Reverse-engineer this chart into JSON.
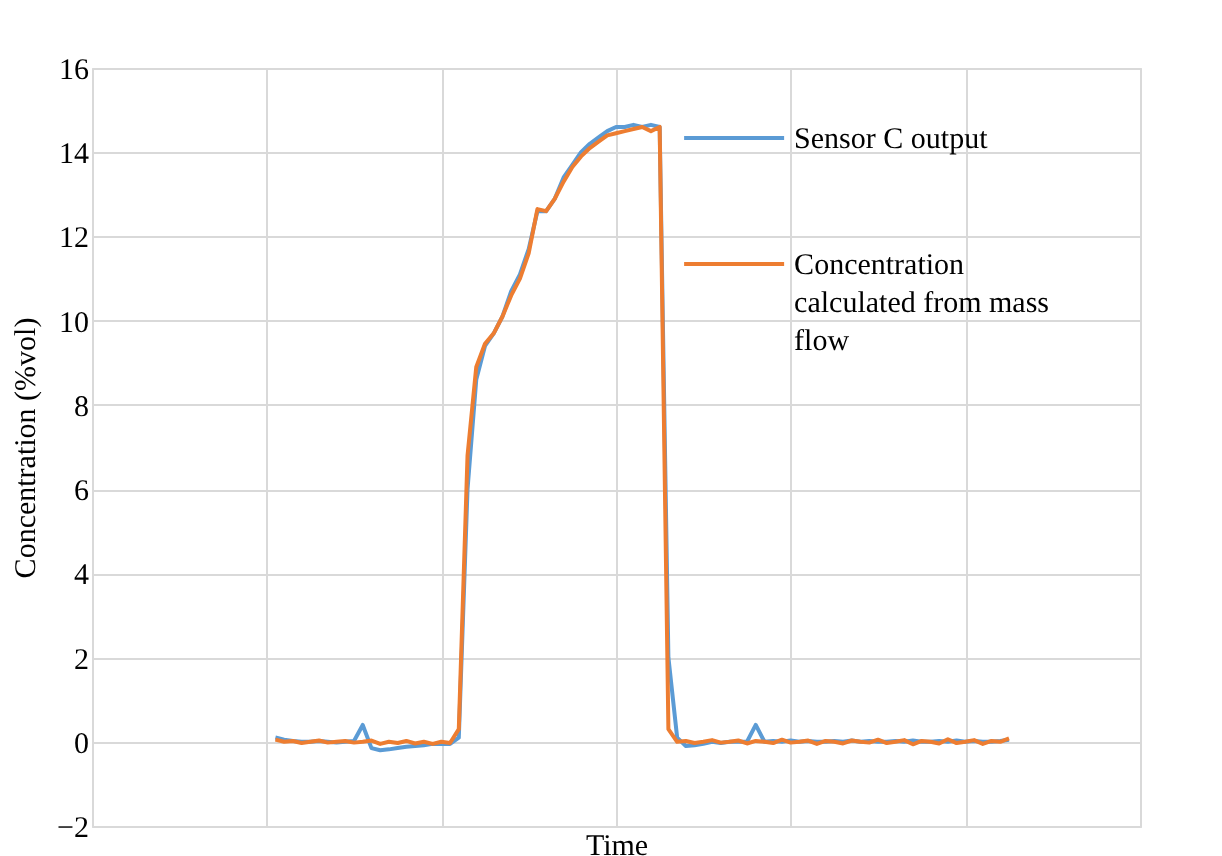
{
  "chart_data": {
    "type": "line",
    "xlabel": "Time",
    "ylabel": "Concentration (%vol)",
    "categories": [
      null,
      null,
      null,
      null,
      null,
      null,
      null,
      null,
      null,
      null,
      null,
      null,
      null,
      null,
      null,
      null,
      null,
      null,
      null,
      null,
      null,
      null,
      null,
      null,
      null,
      null,
      null,
      null,
      null,
      null,
      null,
      null,
      null,
      null,
      null,
      null,
      null,
      null,
      null,
      null,
      null,
      null,
      null,
      null,
      null,
      null,
      null,
      null,
      null,
      null,
      null,
      null,
      null,
      null,
      null,
      null,
      null,
      null,
      null,
      null,
      null,
      null,
      null,
      null,
      null,
      null,
      null,
      null,
      null,
      null,
      null,
      null,
      null,
      null,
      null,
      null,
      null,
      null,
      null,
      null,
      null,
      null,
      null,
      null,
      null,
      null,
      null,
      null,
      null,
      null,
      null,
      null,
      null,
      null,
      null,
      null,
      null,
      null,
      null,
      null,
      null,
      null,
      null,
      null,
      null,
      null,
      null,
      null,
      null,
      null,
      null,
      null,
      null,
      null,
      null,
      null,
      null,
      null,
      null,
      null,
      null
    ],
    "series": [
      {
        "name": "Sensor C output",
        "color": "#5b9bd5",
        "values": [
          null,
          null,
          null,
          null,
          null,
          null,
          null,
          null,
          null,
          null,
          null,
          null,
          null,
          null,
          null,
          null,
          null,
          null,
          null,
          null,
          null,
          0.1,
          0.05,
          0.02,
          0,
          0,
          0.02,
          0,
          -0.02,
          0,
          0.02,
          0.4,
          -0.15,
          -0.2,
          -0.18,
          -0.15,
          -0.12,
          -0.1,
          -0.08,
          -0.05,
          -0.05,
          -0.05,
          0.1,
          6.0,
          8.6,
          9.4,
          9.7,
          10.1,
          10.7,
          11.1,
          11.7,
          12.6,
          12.6,
          12.9,
          13.4,
          13.7,
          14.0,
          14.2,
          14.35,
          14.5,
          14.6,
          14.6,
          14.65,
          14.6,
          14.65,
          14.6,
          2.0,
          0.1,
          -0.1,
          -0.08,
          -0.05,
          0,
          -0.03,
          0,
          0,
          0,
          0.4,
          0,
          0.02,
          0,
          0.03,
          0,
          0.02,
          0,
          0,
          0.02,
          0,
          0.03,
          0,
          0.02,
          0,
          0,
          0.02,
          0,
          0.03,
          0,
          0,
          0.02,
          0,
          0.03,
          0,
          0.02,
          0,
          0,
          0.02,
          0.05,
          null,
          null,
          null,
          null,
          null,
          null,
          null,
          null,
          null,
          null,
          null,
          null,
          null,
          null,
          null
        ]
      },
      {
        "name": "Concentration calculated from mass flow",
        "color": "#ed7d31",
        "values": [
          null,
          null,
          null,
          null,
          null,
          null,
          null,
          null,
          null,
          null,
          null,
          null,
          null,
          null,
          null,
          null,
          null,
          null,
          null,
          null,
          null,
          0.05,
          0,
          0.02,
          -0.03,
          0,
          0.03,
          -0.02,
          0,
          0.02,
          -0.02,
          0,
          0.03,
          -0.05,
          0,
          -0.03,
          0.02,
          -0.04,
          0,
          -0.05,
          0,
          -0.03,
          0.3,
          6.8,
          8.9,
          9.45,
          9.7,
          10.1,
          10.6,
          11.0,
          11.6,
          12.65,
          12.6,
          12.9,
          13.3,
          13.65,
          13.9,
          14.1,
          14.25,
          14.4,
          14.45,
          14.5,
          14.55,
          14.6,
          14.5,
          14.6,
          0.3,
          0.0,
          0.02,
          -0.03,
          0,
          0.04,
          -0.02,
          0,
          0.03,
          -0.04,
          0.02,
          0,
          -0.03,
          0.05,
          -0.02,
          0,
          0.03,
          -0.05,
          0.02,
          0,
          -0.04,
          0.03,
          0,
          -0.02,
          0.05,
          -0.03,
          0,
          0.04,
          -0.06,
          0.02,
          0,
          -0.04,
          0.06,
          -0.03,
          0,
          0.04,
          -0.05,
          0.02,
          0,
          0.08,
          null,
          null,
          null,
          null,
          null,
          null,
          null,
          null,
          null,
          null,
          null,
          null,
          null,
          null,
          null
        ]
      }
    ],
    "ylim": [
      -2,
      16
    ],
    "yticks": [
      -2,
      0,
      2,
      4,
      6,
      8,
      10,
      12,
      14,
      16
    ],
    "grid": true,
    "legend": "right",
    "tick_labels": "y",
    "line_style": "solid",
    "marker": "none"
  }
}
